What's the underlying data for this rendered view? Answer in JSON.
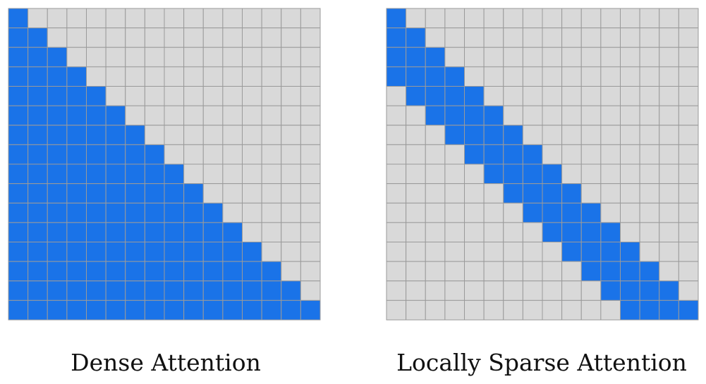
{
  "panels": [
    {
      "label": "Dense Attention"
    },
    {
      "label": "Locally Sparse Attention"
    }
  ]
}
